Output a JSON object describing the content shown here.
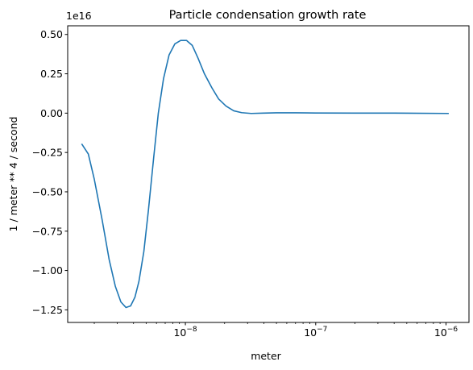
{
  "chart_data": {
    "type": "line",
    "title": "Particle condensation growth rate",
    "xlabel": "meter",
    "ylabel": "1 / meter ** 4 / second",
    "y_offset_text": "1e16",
    "x_scale": "log",
    "y_scale": "linear",
    "grid": false,
    "legend": "none",
    "xlim": [
      1.25e-09,
      1.5e-06
    ],
    "ylim": [
      -1.33,
      0.555
    ],
    "y_unit_multiplier": 1e+16,
    "x_ticks": [
      {
        "value": 1e-08,
        "label": "10",
        "exp": "−8"
      },
      {
        "value": 1e-07,
        "label": "10",
        "exp": "−7"
      },
      {
        "value": 1e-06,
        "label": "10",
        "exp": "−6"
      }
    ],
    "y_ticks": [
      {
        "value": 0.5,
        "label": "0.50"
      },
      {
        "value": 0.25,
        "label": "0.25"
      },
      {
        "value": 0.0,
        "label": "0.00"
      },
      {
        "value": -0.25,
        "label": "−0.25"
      },
      {
        "value": -0.5,
        "label": "−0.50"
      },
      {
        "value": -0.75,
        "label": "−0.75"
      },
      {
        "value": -1.0,
        "label": "−1.00"
      },
      {
        "value": -1.25,
        "label": "−1.25"
      }
    ],
    "series": [
      {
        "color": "#1f77b4",
        "points": [
          [
            1.6e-09,
            -0.195
          ],
          [
            1.8e-09,
            -0.26
          ],
          [
            2e-09,
            -0.42
          ],
          [
            2.3e-09,
            -0.68
          ],
          [
            2.6e-09,
            -0.93
          ],
          [
            2.9e-09,
            -1.1
          ],
          [
            3.2e-09,
            -1.2
          ],
          [
            3.5e-09,
            -1.235
          ],
          [
            3.8e-09,
            -1.225
          ],
          [
            4.1e-09,
            -1.17
          ],
          [
            4.4e-09,
            -1.07
          ],
          [
            4.8e-09,
            -0.88
          ],
          [
            5.2e-09,
            -0.62
          ],
          [
            5.7e-09,
            -0.29
          ],
          [
            6.2e-09,
            0.0
          ],
          [
            6.8e-09,
            0.22
          ],
          [
            7.5e-09,
            0.37
          ],
          [
            8.3e-09,
            0.44
          ],
          [
            9.2e-09,
            0.462
          ],
          [
            1.02e-08,
            0.462
          ],
          [
            1.13e-08,
            0.43
          ],
          [
            1.25e-08,
            0.35
          ],
          [
            1.4e-08,
            0.25
          ],
          [
            1.6e-08,
            0.16
          ],
          [
            1.8e-08,
            0.09
          ],
          [
            2.05e-08,
            0.045
          ],
          [
            2.35e-08,
            0.015
          ],
          [
            2.7e-08,
            0.003
          ],
          [
            3.2e-08,
            -0.002
          ],
          [
            4e-08,
            0.0
          ],
          [
            5e-08,
            0.002
          ],
          [
            7e-08,
            0.002
          ],
          [
            1e-07,
            0.001
          ],
          [
            2e-07,
            0.0
          ],
          [
            4e-07,
            0.0
          ],
          [
            1.05e-06,
            -0.002
          ]
        ]
      }
    ]
  }
}
